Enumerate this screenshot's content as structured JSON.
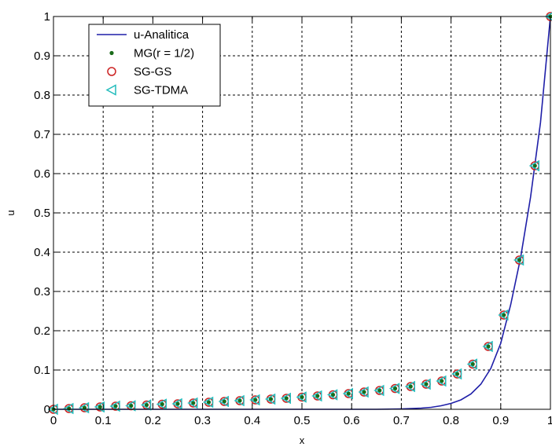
{
  "chart_data": {
    "type": "line",
    "title": "",
    "xlabel": "x",
    "ylabel": "u",
    "xlim": [
      0,
      1
    ],
    "ylim": [
      0,
      1
    ],
    "grid": true,
    "legend_position": "top-left",
    "x_ticks": [
      {
        "value": 0,
        "label": "0"
      },
      {
        "value": 0.1,
        "label": "0.1"
      },
      {
        "value": 0.2,
        "label": "0.2"
      },
      {
        "value": 0.3,
        "label": "0.3"
      },
      {
        "value": 0.4,
        "label": "0.4"
      },
      {
        "value": 0.5,
        "label": "0.5"
      },
      {
        "value": 0.6,
        "label": "0.6"
      },
      {
        "value": 0.7,
        "label": "0.7"
      },
      {
        "value": 0.8,
        "label": "0.8"
      },
      {
        "value": 0.9,
        "label": "0.9"
      },
      {
        "value": 1,
        "label": "1"
      }
    ],
    "y_ticks": [
      {
        "value": 0,
        "label": "0"
      },
      {
        "value": 0.1,
        "label": "0.1"
      },
      {
        "value": 0.2,
        "label": "0.2"
      },
      {
        "value": 0.3,
        "label": "0.3"
      },
      {
        "value": 0.4,
        "label": "0.4"
      },
      {
        "value": 0.5,
        "label": "0.5"
      },
      {
        "value": 0.6,
        "label": "0.6"
      },
      {
        "value": 0.7,
        "label": "0.7"
      },
      {
        "value": 0.8,
        "label": "0.8"
      },
      {
        "value": 0.9,
        "label": "0.9"
      },
      {
        "value": 1,
        "label": "1"
      }
    ],
    "series": [
      {
        "name": "u-Analitica",
        "kind": "line",
        "color": "#1f1fa8",
        "x": [
          0,
          0.3,
          0.5,
          0.6,
          0.65,
          0.7,
          0.72,
          0.74,
          0.76,
          0.78,
          0.8,
          0.82,
          0.84,
          0.86,
          0.88,
          0.9,
          0.92,
          0.94,
          0.96,
          0.98,
          1.0
        ],
        "y": [
          0,
          0,
          0,
          0,
          0,
          0.001,
          0.002,
          0.003,
          0.005,
          0.009,
          0.015,
          0.024,
          0.039,
          0.064,
          0.104,
          0.168,
          0.266,
          0.386,
          0.54,
          0.73,
          1.0
        ]
      },
      {
        "name": "MG(r = 1/2)",
        "kind": "marker",
        "marker": "dot",
        "color": "#1a6b1a",
        "x": [
          0,
          0.03125,
          0.0625,
          0.09375,
          0.125,
          0.15625,
          0.1875,
          0.21875,
          0.25,
          0.28125,
          0.3125,
          0.34375,
          0.375,
          0.40625,
          0.4375,
          0.46875,
          0.5,
          0.53125,
          0.5625,
          0.59375,
          0.625,
          0.65625,
          0.6875,
          0.71875,
          0.75,
          0.78125,
          0.8125,
          0.84375,
          0.875,
          0.90625,
          0.9375,
          0.96875,
          1.0
        ],
        "y": [
          0,
          0.002,
          0.004,
          0.006,
          0.008,
          0.009,
          0.011,
          0.013,
          0.014,
          0.016,
          0.018,
          0.02,
          0.022,
          0.024,
          0.026,
          0.028,
          0.031,
          0.034,
          0.037,
          0.04,
          0.044,
          0.048,
          0.053,
          0.058,
          0.064,
          0.072,
          0.09,
          0.115,
          0.16,
          0.24,
          0.38,
          0.62,
          1.0
        ]
      },
      {
        "name": "SG-GS",
        "kind": "marker",
        "marker": "circle",
        "color": "#cc2222",
        "x": [
          0,
          0.03125,
          0.0625,
          0.09375,
          0.125,
          0.15625,
          0.1875,
          0.21875,
          0.25,
          0.28125,
          0.3125,
          0.34375,
          0.375,
          0.40625,
          0.4375,
          0.46875,
          0.5,
          0.53125,
          0.5625,
          0.59375,
          0.625,
          0.65625,
          0.6875,
          0.71875,
          0.75,
          0.78125,
          0.8125,
          0.84375,
          0.875,
          0.90625,
          0.9375,
          0.96875,
          1.0
        ],
        "y": [
          0,
          0.002,
          0.004,
          0.006,
          0.008,
          0.009,
          0.011,
          0.013,
          0.014,
          0.016,
          0.018,
          0.02,
          0.022,
          0.024,
          0.026,
          0.028,
          0.031,
          0.034,
          0.037,
          0.04,
          0.044,
          0.048,
          0.053,
          0.058,
          0.064,
          0.072,
          0.09,
          0.115,
          0.16,
          0.24,
          0.38,
          0.62,
          1.0
        ]
      },
      {
        "name": "SG-TDMA",
        "kind": "marker",
        "marker": "triangle-left",
        "color": "#22bcbc",
        "x": [
          0,
          0.03125,
          0.0625,
          0.09375,
          0.125,
          0.15625,
          0.1875,
          0.21875,
          0.25,
          0.28125,
          0.3125,
          0.34375,
          0.375,
          0.40625,
          0.4375,
          0.46875,
          0.5,
          0.53125,
          0.5625,
          0.59375,
          0.625,
          0.65625,
          0.6875,
          0.71875,
          0.75,
          0.78125,
          0.8125,
          0.84375,
          0.875,
          0.90625,
          0.9375,
          0.96875,
          1.0
        ],
        "y": [
          0,
          0.002,
          0.004,
          0.006,
          0.008,
          0.009,
          0.011,
          0.013,
          0.014,
          0.016,
          0.018,
          0.02,
          0.022,
          0.024,
          0.026,
          0.028,
          0.031,
          0.034,
          0.037,
          0.04,
          0.044,
          0.048,
          0.053,
          0.058,
          0.064,
          0.072,
          0.09,
          0.115,
          0.16,
          0.24,
          0.38,
          0.62,
          1.0
        ]
      }
    ]
  }
}
